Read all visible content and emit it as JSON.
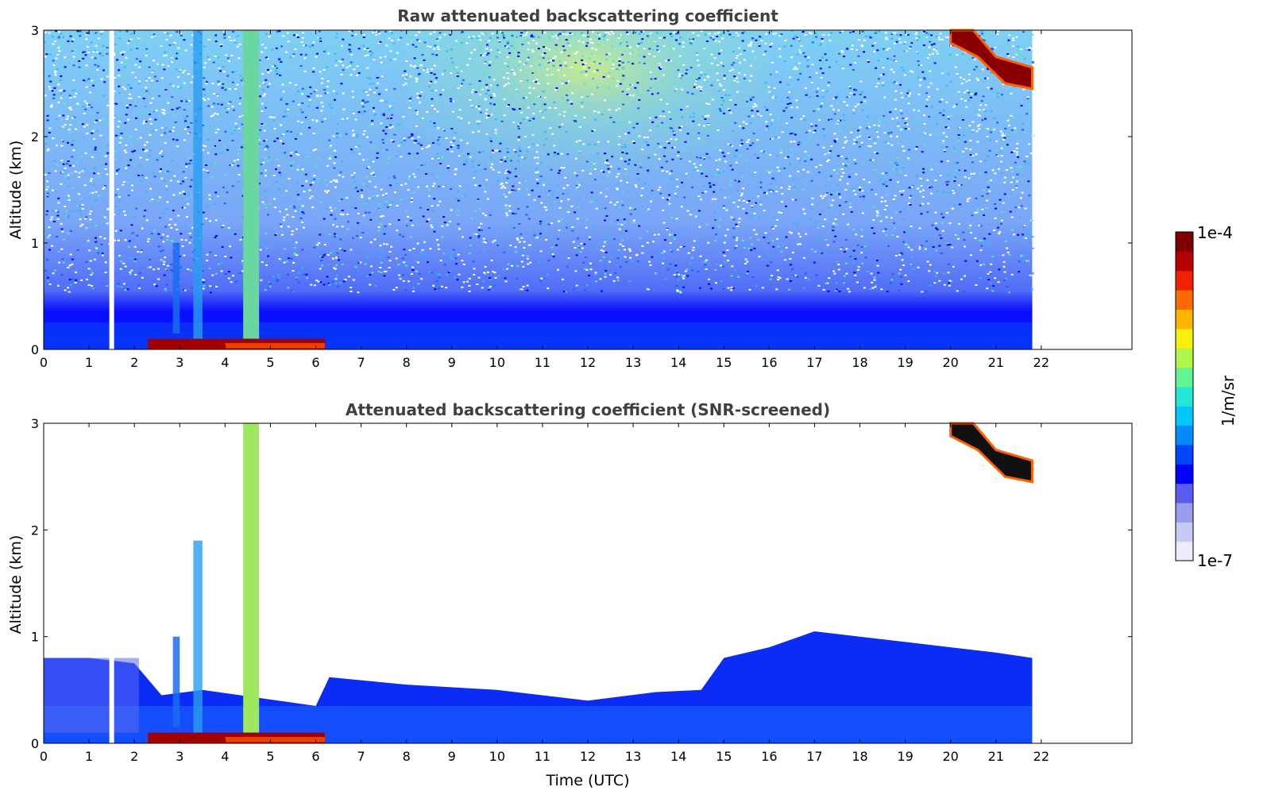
{
  "chart_data": [
    {
      "type": "heatmap",
      "title": "Raw attenuated backscattering coefficient",
      "xlabel": "",
      "ylabel": "Altitude (km)",
      "xlim": [
        0,
        24
      ],
      "ylim": [
        0,
        3
      ],
      "xticks": [
        "0",
        "1",
        "2",
        "3",
        "4",
        "5",
        "6",
        "7",
        "8",
        "9",
        "10",
        "11",
        "12",
        "13",
        "14",
        "15",
        "16",
        "17",
        "18",
        "19",
        "20",
        "21",
        "22"
      ],
      "yticks": [
        "0",
        "1",
        "2",
        "3"
      ],
      "data_end_time": 21.8,
      "gap_time": 1.5,
      "features": [
        {
          "kind": "surface_layer",
          "from": 2.3,
          "to": 6.2,
          "alt": 0.05
        },
        {
          "kind": "plume",
          "from": 4.4,
          "to": 4.75,
          "top": 3.0
        },
        {
          "kind": "cloud",
          "from": 20.0,
          "to": 21.8,
          "alt_start": 2.95,
          "alt_end": 2.55
        }
      ]
    },
    {
      "type": "heatmap",
      "title": "Attenuated backscattering coefficient (SNR-screened)",
      "xlabel": "Time (UTC)",
      "ylabel": "Altitude (km)",
      "xlim": [
        0,
        24
      ],
      "ylim": [
        0,
        3
      ],
      "xticks": [
        "0",
        "1",
        "2",
        "3",
        "4",
        "5",
        "6",
        "7",
        "8",
        "9",
        "10",
        "11",
        "12",
        "13",
        "14",
        "15",
        "16",
        "17",
        "18",
        "19",
        "20",
        "21",
        "22"
      ],
      "yticks": [
        "0",
        "1",
        "2",
        "3"
      ],
      "data_end_time": 21.8,
      "gap_time": 1.5,
      "boundary_layer_top": [
        [
          0,
          0.8
        ],
        [
          1,
          0.8
        ],
        [
          2,
          0.75
        ],
        [
          2.6,
          0.45
        ],
        [
          3.5,
          0.5
        ],
        [
          6,
          0.35
        ],
        [
          6.3,
          0.62
        ],
        [
          8,
          0.55
        ],
        [
          10,
          0.5
        ],
        [
          12,
          0.4
        ],
        [
          13.5,
          0.48
        ],
        [
          14.5,
          0.5
        ],
        [
          15,
          0.8
        ],
        [
          16,
          0.9
        ],
        [
          17,
          1.05
        ],
        [
          18,
          1.0
        ],
        [
          19,
          0.95
        ],
        [
          20,
          0.9
        ],
        [
          21,
          0.85
        ],
        [
          21.8,
          0.8
        ]
      ]
    }
  ],
  "colorbar": {
    "min_label": "1e-7",
    "max_label": "1e-4",
    "unit": "1/m/sr",
    "colors": [
      "#ececfa",
      "#c7c9f2",
      "#9a9cee",
      "#5a5cf0",
      "#0000ff",
      "#0046ff",
      "#008cff",
      "#00c8ff",
      "#26e6d8",
      "#63f593",
      "#b0f54c",
      "#f5f00a",
      "#ffb400",
      "#ff6a00",
      "#f02000",
      "#b40000",
      "#800000"
    ]
  }
}
